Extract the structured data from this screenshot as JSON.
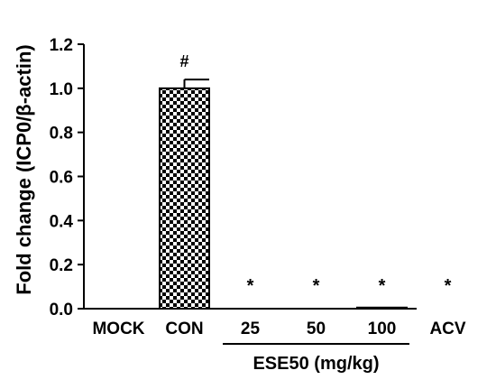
{
  "chart_data": {
    "type": "bar",
    "ylabel": "Fold change (ICP0/β-actin)",
    "ylim": [
      0,
      1.2
    ],
    "yticks": [
      "0.0",
      "0.2",
      "0.4",
      "0.6",
      "0.8",
      "1.0",
      "1.2"
    ],
    "categories": [
      "MOCK",
      "CON",
      "25",
      "50",
      "100",
      "ACV"
    ],
    "values": [
      0.0,
      1.0,
      0.0,
      0.0,
      0.005,
      0.0
    ],
    "errors": [
      0.0,
      0.04,
      0.0,
      0.0,
      0.0,
      0.0
    ],
    "markers": [
      "",
      "#",
      "*",
      "*",
      "*",
      "*"
    ],
    "group_label": "ESE50 (mg/kg)",
    "bar_pattern": "checkerboard",
    "colors": {
      "bar_fill": "#000000",
      "bar_pattern_light": "#ffffff",
      "axis": "#000000"
    },
    "grid": false,
    "legend": "none"
  }
}
